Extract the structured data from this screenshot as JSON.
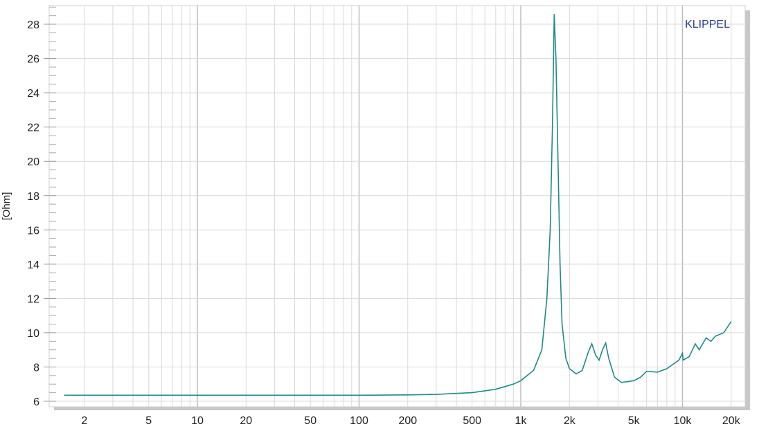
{
  "chart_data": {
    "type": "line",
    "title": "",
    "xlabel": "",
    "ylabel": "[Ohm]",
    "watermark": "KLIPPEL",
    "x_scale": "log",
    "xlim": [
      1.2,
      25000
    ],
    "ylim": [
      5.7,
      29
    ],
    "grid": true,
    "x_ticks": [
      {
        "value": 2,
        "label": "2"
      },
      {
        "value": 5,
        "label": "5"
      },
      {
        "value": 10,
        "label": "10"
      },
      {
        "value": 20,
        "label": "20"
      },
      {
        "value": 50,
        "label": "50"
      },
      {
        "value": 100,
        "label": "100"
      },
      {
        "value": 200,
        "label": "200"
      },
      {
        "value": 500,
        "label": "500"
      },
      {
        "value": 1000,
        "label": "1k"
      },
      {
        "value": 2000,
        "label": "2k"
      },
      {
        "value": 5000,
        "label": "5k"
      },
      {
        "value": 10000,
        "label": "10k"
      },
      {
        "value": 20000,
        "label": "20k"
      }
    ],
    "y_ticks": [
      6,
      8,
      10,
      12,
      14,
      16,
      18,
      20,
      22,
      24,
      26,
      28
    ],
    "colors": {
      "series": "#1f8a86",
      "watermark": "#2d3f8a",
      "grid": "#d9d9d9",
      "major_grid": "#bdbdbd"
    },
    "series": [
      {
        "x": [
          1.5,
          10,
          100,
          200,
          300,
          500,
          700,
          900,
          1000,
          1200,
          1350,
          1450,
          1520,
          1570,
          1610,
          1650,
          1700,
          1750,
          1800,
          1900,
          2000,
          2200,
          2400,
          2600,
          2750,
          2900,
          3050,
          3200,
          3350,
          3500,
          3800,
          4200,
          5000,
          5500,
          6000,
          7000,
          8000,
          9500,
          10000,
          10100,
          11000,
          12000,
          12700,
          14000,
          15000,
          16000,
          18000,
          20000
        ],
        "y": [
          6.35,
          6.35,
          6.35,
          6.37,
          6.4,
          6.5,
          6.7,
          7.0,
          7.2,
          7.8,
          9.0,
          12.0,
          16.0,
          22.0,
          28.6,
          26.0,
          20.0,
          14.0,
          10.5,
          8.5,
          7.9,
          7.6,
          7.8,
          8.8,
          9.35,
          8.7,
          8.4,
          9.0,
          9.4,
          8.5,
          7.4,
          7.1,
          7.2,
          7.4,
          7.75,
          7.7,
          7.9,
          8.4,
          8.8,
          8.4,
          8.6,
          9.35,
          9.0,
          9.7,
          9.5,
          9.8,
          10.0,
          10.65
        ]
      }
    ]
  }
}
